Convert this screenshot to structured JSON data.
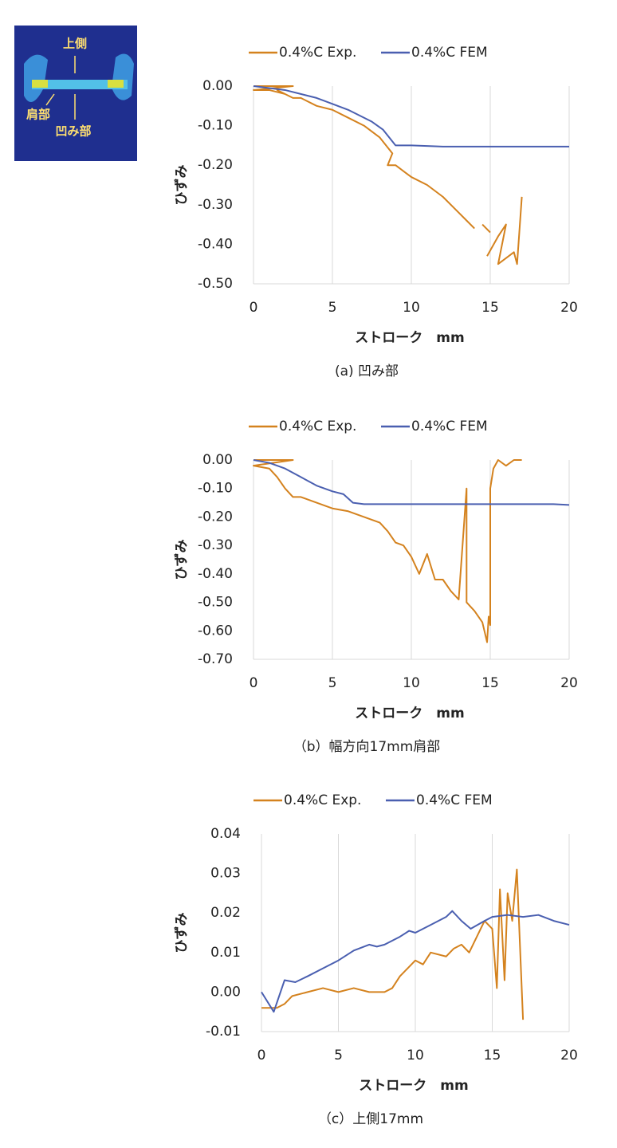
{
  "inset": {
    "labels": [
      "上側",
      "肩部",
      "凹み部"
    ]
  },
  "chart_data": [
    {
      "type": "line",
      "grid": "x",
      "series": [
        {
          "name": "0.4%C Exp.",
          "color": "#d4821e",
          "x": [
            0,
            2.5,
            0,
            1,
            2,
            1.5,
            2.5,
            3,
            4,
            5,
            6,
            7,
            8,
            8.8,
            8.5,
            9,
            10,
            11,
            12,
            13,
            13.5,
            14,
            null,
            14.5,
            15,
            null,
            14.8,
            15.5,
            16,
            15.5,
            16.5,
            16.7,
            17
          ],
          "values": [
            0,
            0,
            -0.01,
            -0.01,
            -0.02,
            -0.01,
            -0.03,
            -0.03,
            -0.05,
            -0.06,
            -0.08,
            -0.1,
            -0.13,
            -0.17,
            -0.2,
            -0.2,
            -0.23,
            -0.25,
            -0.28,
            -0.32,
            -0.34,
            -0.36,
            null,
            -0.35,
            -0.37,
            null,
            -0.43,
            -0.38,
            -0.35,
            -0.45,
            -0.42,
            -0.45,
            -0.28
          ]
        },
        {
          "name": "0.4%C FEM",
          "color": "#4a5fb0",
          "x": [
            0,
            2,
            4,
            6,
            7.5,
            8.2,
            9,
            10,
            12,
            15,
            20
          ],
          "values": [
            0,
            -0.01,
            -0.03,
            -0.06,
            -0.09,
            -0.11,
            -0.15,
            -0.15,
            -0.153,
            -0.153,
            -0.153
          ]
        }
      ],
      "xlim": [
        0,
        20
      ],
      "ylim": [
        -0.5,
        0
      ],
      "xticks": [
        0,
        5,
        10,
        15,
        20
      ],
      "yticks": [
        {
          "value": 0,
          "label": "0.00"
        },
        {
          "value": -0.1,
          "label": "-0.10"
        },
        {
          "value": -0.2,
          "label": "-0.20"
        },
        {
          "value": -0.3,
          "label": "-0.30"
        },
        {
          "value": -0.4,
          "label": "-0.40"
        },
        {
          "value": -0.5,
          "label": "-0.50"
        }
      ],
      "xlabel": "ストローク　mm",
      "ylabel": "ひずみ",
      "caption": "(a) 凹み部"
    },
    {
      "type": "line",
      "grid": "x",
      "series": [
        {
          "name": "0.4%C Exp.",
          "color": "#d4821e",
          "x": [
            0,
            2.5,
            0,
            1,
            1.5,
            2,
            2.5,
            3,
            4,
            5,
            6,
            7,
            8,
            8.5,
            9,
            9.5,
            10,
            10.5,
            11,
            11.5,
            12,
            12.5,
            13,
            13.5,
            13.5,
            14,
            14.5,
            14.8,
            14.9,
            15,
            15,
            15.2,
            15.5,
            16,
            16.5,
            17
          ],
          "values": [
            0,
            0,
            -0.02,
            -0.03,
            -0.06,
            -0.1,
            -0.13,
            -0.13,
            -0.15,
            -0.17,
            -0.18,
            -0.2,
            -0.22,
            -0.25,
            -0.29,
            -0.3,
            -0.34,
            -0.4,
            -0.33,
            -0.42,
            -0.42,
            -0.46,
            -0.49,
            -0.1,
            -0.5,
            -0.53,
            -0.57,
            -0.64,
            -0.55,
            -0.58,
            -0.1,
            -0.03,
            0,
            -0.02,
            0,
            0
          ]
        },
        {
          "name": "0.4%C FEM",
          "color": "#4a5fb0",
          "x": [
            0,
            1,
            2,
            3,
            4,
            5,
            5.7,
            6.3,
            7,
            10,
            15,
            19,
            20
          ],
          "values": [
            0,
            -0.01,
            -0.03,
            -0.06,
            -0.09,
            -0.11,
            -0.12,
            -0.15,
            -0.155,
            -0.155,
            -0.155,
            -0.155,
            -0.158
          ]
        }
      ],
      "xlim": [
        0,
        20
      ],
      "ylim": [
        -0.7,
        0
      ],
      "xticks": [
        0,
        5,
        10,
        15,
        20
      ],
      "yticks": [
        {
          "value": 0,
          "label": "0.00"
        },
        {
          "value": -0.1,
          "label": "-0.10"
        },
        {
          "value": -0.2,
          "label": "-0.20"
        },
        {
          "value": -0.3,
          "label": "-0.30"
        },
        {
          "value": -0.4,
          "label": "-0.40"
        },
        {
          "value": -0.5,
          "label": "-0.50"
        },
        {
          "value": -0.6,
          "label": "-0.60"
        },
        {
          "value": -0.7,
          "label": "-0.70"
        }
      ],
      "xlabel": "ストローク　mm",
      "ylabel": "ひずみ",
      "caption": "（b）幅方向17mm肩部"
    },
    {
      "type": "line",
      "grid": "x",
      "series": [
        {
          "name": "0.4%C Exp.",
          "color": "#d4821e",
          "x": [
            0,
            1,
            1.5,
            2,
            3,
            4,
            5,
            6,
            7,
            8,
            8.5,
            9,
            9.5,
            10,
            10.5,
            11,
            12,
            12.5,
            13,
            13.5,
            14,
            14.5,
            15,
            15.3,
            15.5,
            15.8,
            16,
            16.3,
            16.6,
            16.8,
            17
          ],
          "values": [
            -0.004,
            -0.004,
            -0.003,
            -0.001,
            0,
            0.001,
            0,
            0.001,
            0,
            0,
            0.001,
            0.004,
            0.006,
            0.008,
            0.007,
            0.01,
            0.009,
            0.011,
            0.012,
            0.01,
            0.014,
            0.018,
            0.016,
            0.001,
            0.026,
            0.003,
            0.025,
            0.018,
            0.031,
            0.012,
            -0.007
          ]
        },
        {
          "name": "0.4%C FEM",
          "color": "#4a5fb0",
          "x": [
            0,
            0.8,
            1.5,
            2.2,
            3,
            4,
            5,
            6,
            7,
            7.5,
            8,
            9,
            9.6,
            10,
            11,
            12,
            12.4,
            13,
            13.6,
            14.5,
            15,
            16,
            17,
            18,
            19,
            20
          ],
          "values": [
            0,
            -0.005,
            0.003,
            0.0025,
            0.004,
            0.006,
            0.008,
            0.0105,
            0.012,
            0.0115,
            0.012,
            0.014,
            0.0155,
            0.015,
            0.017,
            0.019,
            0.0205,
            0.018,
            0.016,
            0.018,
            0.019,
            0.0195,
            0.019,
            0.0195,
            0.018,
            0.017
          ]
        }
      ],
      "xlim": [
        0,
        20
      ],
      "ylim": [
        -0.01,
        0.04
      ],
      "xticks": [
        0,
        5,
        10,
        15,
        20
      ],
      "yticks": [
        0.04,
        0.03,
        0.02,
        0.01,
        {
          "value": 0,
          "label": "0.00"
        },
        -0.01
      ],
      "xlabel": "ストローク　mm",
      "ylabel": "ひずみ",
      "caption": "（c）上側17mm"
    }
  ]
}
